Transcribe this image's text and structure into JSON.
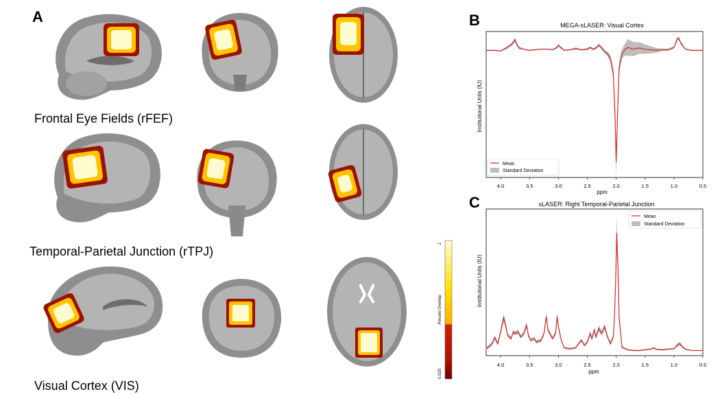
{
  "panels": {
    "a": "A",
    "b": "B",
    "c": "C"
  },
  "regions": [
    {
      "label": "Frontal Eye Fields (rFEF)"
    },
    {
      "label": "Temporal-Parietal Junction (rTPJ)"
    },
    {
      "label": "Visual Cortex (VIS)"
    }
  ],
  "colorbar": {
    "label": "Percent Overlap",
    "max": "1",
    "min": "0.025"
  },
  "colors": {
    "overlap_high": "#fffbd0",
    "overlap_mid": "#ffc400",
    "overlap_low": "#d02000",
    "overlap_edge": "#800000",
    "mean_line": "#d62728",
    "sd_band": "#bdbdbd",
    "brain_gray": "#9a9a9a"
  },
  "chart_data": [
    {
      "type": "line",
      "title": "MEGA-sLASER: Visual Cortex",
      "xlabel": "ppm",
      "ylabel": "Institutional Units (IU)",
      "xlim": [
        4.25,
        0.5
      ],
      "x_ticks": [
        "4.0",
        "3.5",
        "3.0",
        "2.5",
        "2.0",
        "1.5",
        "1.0",
        "0.5"
      ],
      "legend": "lower-left",
      "series": [
        {
          "name": "Mean",
          "x": [
            4.25,
            4.1,
            4.0,
            3.9,
            3.8,
            3.75,
            3.72,
            3.68,
            3.6,
            3.5,
            3.4,
            3.3,
            3.2,
            3.1,
            3.02,
            3.0,
            2.95,
            2.9,
            2.8,
            2.7,
            2.6,
            2.5,
            2.45,
            2.4,
            2.35,
            2.3,
            2.25,
            2.2,
            2.15,
            2.1,
            2.05,
            2.02,
            2.0,
            1.98,
            1.95,
            1.9,
            1.85,
            1.8,
            1.7,
            1.6,
            1.5,
            1.4,
            1.3,
            1.2,
            1.1,
            1.0,
            0.95,
            0.92,
            0.88,
            0.8,
            0.7,
            0.6,
            0.5
          ],
          "y": [
            0.0,
            0.0,
            -0.05,
            0.2,
            0.55,
            0.9,
            0.5,
            0.2,
            0.1,
            0.0,
            0.05,
            0.1,
            0.1,
            0.05,
            0.25,
            0.45,
            0.2,
            0.0,
            0.05,
            0.15,
            0.05,
            0.1,
            0.25,
            0.1,
            0.2,
            0.45,
            0.2,
            -0.1,
            -0.3,
            -0.7,
            -2.0,
            -5.5,
            -9.5,
            -6.0,
            -1.5,
            -0.3,
            0.05,
            0.25,
            0.1,
            0.2,
            0.1,
            0.05,
            0.0,
            0.05,
            0.05,
            0.25,
            0.9,
            1.05,
            0.6,
            0.1,
            0.0,
            0.0,
            0.0
          ]
        },
        {
          "name": "Standard Deviation",
          "sd": [
            0.05,
            0.05,
            0.05,
            0.1,
            0.15,
            0.2,
            0.15,
            0.1,
            0.05,
            0.05,
            0.05,
            0.05,
            0.05,
            0.05,
            0.1,
            0.1,
            0.1,
            0.05,
            0.05,
            0.1,
            0.05,
            0.1,
            0.1,
            0.1,
            0.1,
            0.15,
            0.15,
            0.15,
            0.2,
            0.3,
            0.5,
            1.0,
            1.2,
            1.0,
            0.5,
            0.4,
            0.5,
            0.7,
            0.6,
            0.5,
            0.4,
            0.3,
            0.2,
            0.1,
            0.1,
            0.1,
            0.15,
            0.15,
            0.15,
            0.05,
            0.05,
            0.05,
            0.05
          ]
        }
      ]
    },
    {
      "type": "line",
      "title": "sLASER: Right Temporal-Parietal Junction",
      "xlabel": "ppm",
      "ylabel": "Institutional Units (IU)",
      "xlim": [
        4.25,
        0.5
      ],
      "x_ticks": [
        "4.0",
        "3.5",
        "3.0",
        "2.5",
        "2.0",
        "1.5",
        "1.0",
        "0.5"
      ],
      "legend": "top-right",
      "series": [
        {
          "name": "Mean",
          "x": [
            4.25,
            4.2,
            4.15,
            4.1,
            4.05,
            4.0,
            3.95,
            3.92,
            3.88,
            3.82,
            3.78,
            3.75,
            3.7,
            3.65,
            3.6,
            3.55,
            3.52,
            3.48,
            3.42,
            3.38,
            3.3,
            3.25,
            3.21,
            3.18,
            3.1,
            3.05,
            3.02,
            3.0,
            2.95,
            2.9,
            2.8,
            2.7,
            2.65,
            2.6,
            2.55,
            2.5,
            2.45,
            2.42,
            2.38,
            2.35,
            2.3,
            2.25,
            2.2,
            2.15,
            2.1,
            2.05,
            2.03,
            2.01,
            1.99,
            1.97,
            1.95,
            1.9,
            1.8,
            1.7,
            1.6,
            1.5,
            1.4,
            1.35,
            1.3,
            1.2,
            1.1,
            1.0,
            0.95,
            0.9,
            0.85,
            0.8,
            0.7,
            0.6,
            0.5
          ],
          "y": [
            0.05,
            0.12,
            0.2,
            0.38,
            0.2,
            0.55,
            0.95,
            0.8,
            0.45,
            0.35,
            0.55,
            0.5,
            0.55,
            0.4,
            0.5,
            0.75,
            0.45,
            0.3,
            0.35,
            0.25,
            0.3,
            0.5,
            1.0,
            0.6,
            0.35,
            0.5,
            1.0,
            0.7,
            0.3,
            0.08,
            0.05,
            0.08,
            0.2,
            0.3,
            0.15,
            0.25,
            0.5,
            0.35,
            0.6,
            0.4,
            0.65,
            0.5,
            0.7,
            0.4,
            0.2,
            0.4,
            1.0,
            2.0,
            3.45,
            2.5,
            1.0,
            0.1,
            0.02,
            0.0,
            0.0,
            0.02,
            0.04,
            0.08,
            0.03,
            0.02,
            0.04,
            0.05,
            0.15,
            0.2,
            0.1,
            0.04,
            0.0,
            0.0,
            0.0
          ]
        },
        {
          "name": "Standard Deviation",
          "sd": [
            0.05,
            0.05,
            0.05,
            0.07,
            0.05,
            0.08,
            0.12,
            0.1,
            0.06,
            0.05,
            0.07,
            0.06,
            0.07,
            0.05,
            0.06,
            0.1,
            0.06,
            0.05,
            0.05,
            0.05,
            0.05,
            0.06,
            0.12,
            0.07,
            0.05,
            0.06,
            0.12,
            0.08,
            0.05,
            0.03,
            0.03,
            0.03,
            0.04,
            0.05,
            0.04,
            0.05,
            0.07,
            0.06,
            0.08,
            0.06,
            0.09,
            0.07,
            0.09,
            0.06,
            0.05,
            0.07,
            0.15,
            0.25,
            0.5,
            0.3,
            0.15,
            0.04,
            0.02,
            0.02,
            0.02,
            0.02,
            0.02,
            0.03,
            0.02,
            0.02,
            0.02,
            0.02,
            0.05,
            0.06,
            0.04,
            0.02,
            0.01,
            0.01,
            0.01
          ]
        }
      ]
    }
  ]
}
